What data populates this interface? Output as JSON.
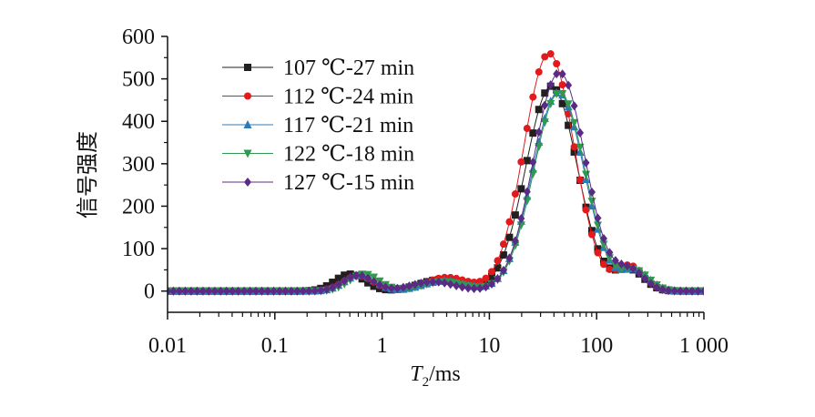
{
  "chart_data": {
    "type": "line",
    "title": "",
    "xscale": "log",
    "xlim": [
      0.01,
      1000
    ],
    "ylim": [
      -50,
      600
    ],
    "x_ticks": [
      0.01,
      0.1,
      1,
      10,
      100,
      1000
    ],
    "x_tick_labels": [
      "0.01",
      "0.1",
      "1",
      "10",
      "100",
      "1 000"
    ],
    "y_ticks": [
      0,
      100,
      200,
      300,
      400,
      500,
      600
    ],
    "y_tick_labels": [
      "0",
      "100",
      "200",
      "300",
      "400",
      "500",
      "600"
    ],
    "xlabel_main": "T",
    "xlabel_sub": "2",
    "xlabel_unit": "/ms",
    "ylabel": "信号强度",
    "legend_position": "top-left",
    "grid": false,
    "series": [
      {
        "name": "107 ℃-27 min",
        "color": "#231f20",
        "marker": "square",
        "peaks": [
          [
            0.5,
            40,
            0.14
          ],
          [
            3.5,
            27,
            0.2
          ],
          [
            38,
            483,
            0.24
          ],
          [
            205,
            48,
            0.13
          ]
        ]
      },
      {
        "name": "112 ℃-24 min",
        "color": "#e31a1c",
        "marker": "circle",
        "peaks": [
          [
            0.6,
            36,
            0.14
          ],
          [
            4.0,
            32,
            0.2
          ],
          [
            36,
            560,
            0.235
          ],
          [
            205,
            58,
            0.13
          ]
        ]
      },
      {
        "name": "117 ℃-21 min",
        "color": "#2b7bb9",
        "marker": "triangle-up",
        "peaks": [
          [
            0.62,
            38,
            0.14
          ],
          [
            3.8,
            24,
            0.2
          ],
          [
            44,
            468,
            0.24
          ],
          [
            230,
            46,
            0.13
          ]
        ]
      },
      {
        "name": "122 ℃-18 min",
        "color": "#2e9a4f",
        "marker": "triangle-down",
        "peaks": [
          [
            0.68,
            40,
            0.14
          ],
          [
            3.7,
            22,
            0.2
          ],
          [
            45,
            468,
            0.24
          ],
          [
            230,
            45,
            0.13
          ]
        ]
      },
      {
        "name": "127 ℃-15 min",
        "color": "#5b2a86",
        "marker": "diamond",
        "peaks": [
          [
            0.6,
            37,
            0.14
          ],
          [
            3.0,
            22,
            0.2
          ],
          [
            45,
            515,
            0.24
          ],
          [
            210,
            45,
            0.13
          ]
        ]
      }
    ]
  }
}
